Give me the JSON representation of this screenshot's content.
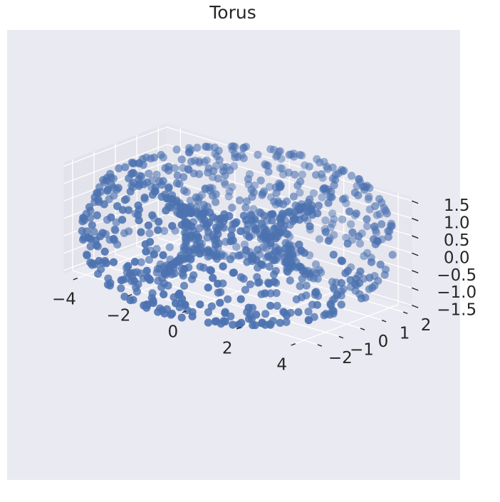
{
  "chart_data": {
    "type": "scatter",
    "projection": "3d",
    "title": "Torus",
    "marker_color": "#4C72B0",
    "background_color": "#EAEAF2",
    "grid_color": "#FFFFFF",
    "grid": true,
    "n_points": 1000,
    "torus": {
      "major_radius": 3,
      "minor_radius": 1.5
    },
    "xlim": [
      -4.5,
      4.5
    ],
    "ylim": [
      -2.4,
      2.4
    ],
    "zlim": [
      -1.6,
      1.6
    ],
    "x_ticks": [
      "−4",
      "−2",
      "0",
      "2",
      "4"
    ],
    "y_ticks": [
      "−2",
      "−1",
      "0",
      "1",
      "2"
    ],
    "z_ticks": [
      "−1.5",
      "−1.0",
      "−0.5",
      "0.0",
      "0.5",
      "1.0",
      "1.5"
    ],
    "x_tick_values": [
      -4,
      -2,
      0,
      2,
      4
    ],
    "y_tick_values": [
      -2,
      -1,
      0,
      1,
      2
    ],
    "z_tick_values": [
      -1.5,
      -1.0,
      -0.5,
      0.0,
      0.5,
      1.0,
      1.5
    ]
  }
}
